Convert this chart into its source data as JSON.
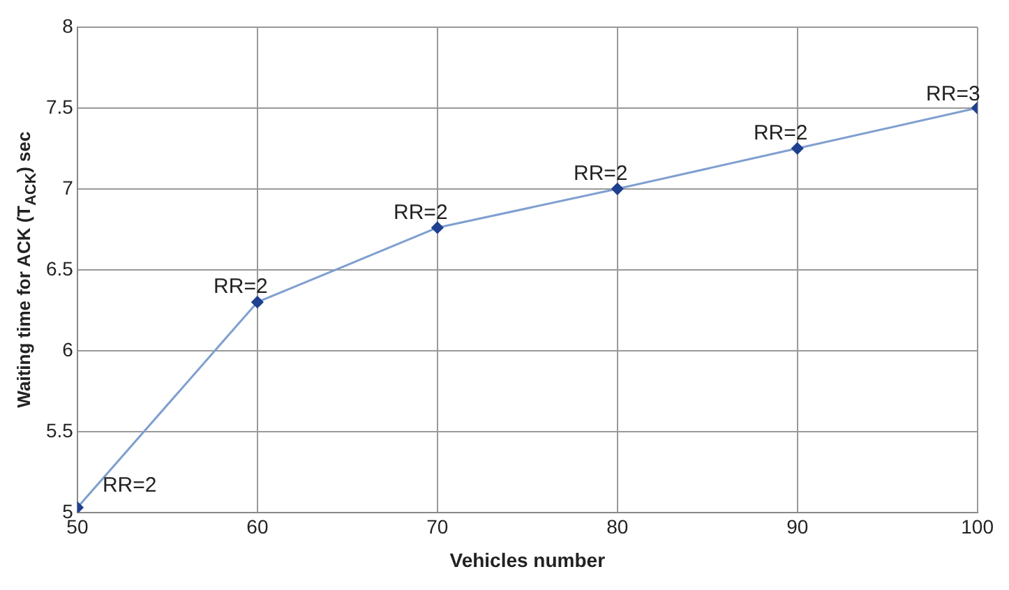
{
  "chart_data": {
    "type": "line",
    "xlabel": "Vehicles number",
    "ylabel": "Waiting time for ACK (T$_{ACK}$) sec",
    "x": [
      50,
      60,
      70,
      80,
      90,
      100
    ],
    "series": [
      {
        "color": "#7f9fd0",
        "values": [
          5.03,
          6.3,
          6.76,
          7.0,
          7.25,
          7.5
        ]
      }
    ],
    "xlim": [
      50,
      100
    ],
    "xticks": [
      50,
      60,
      70,
      80,
      90,
      100
    ],
    "ylim": [
      5,
      8
    ],
    "yticks": [
      5,
      5.5,
      6,
      6.5,
      7,
      7.5,
      8
    ],
    "grid": true,
    "legend": false,
    "marker": "diamond",
    "line_style": "solid",
    "annotations": [
      {
        "text": "RR=2",
        "x": 50,
        "y": 5.03
      },
      {
        "text": "RR=2",
        "x": 60,
        "y": 6.3
      },
      {
        "text": "RR=2",
        "x": 70,
        "y": 6.76
      },
      {
        "text": "RR=2",
        "x": 80,
        "y": 7.0
      },
      {
        "text": "RR=2",
        "x": 90,
        "y": 7.25
      },
      {
        "text": "RR=3",
        "x": 100,
        "y": 7.5
      }
    ]
  }
}
